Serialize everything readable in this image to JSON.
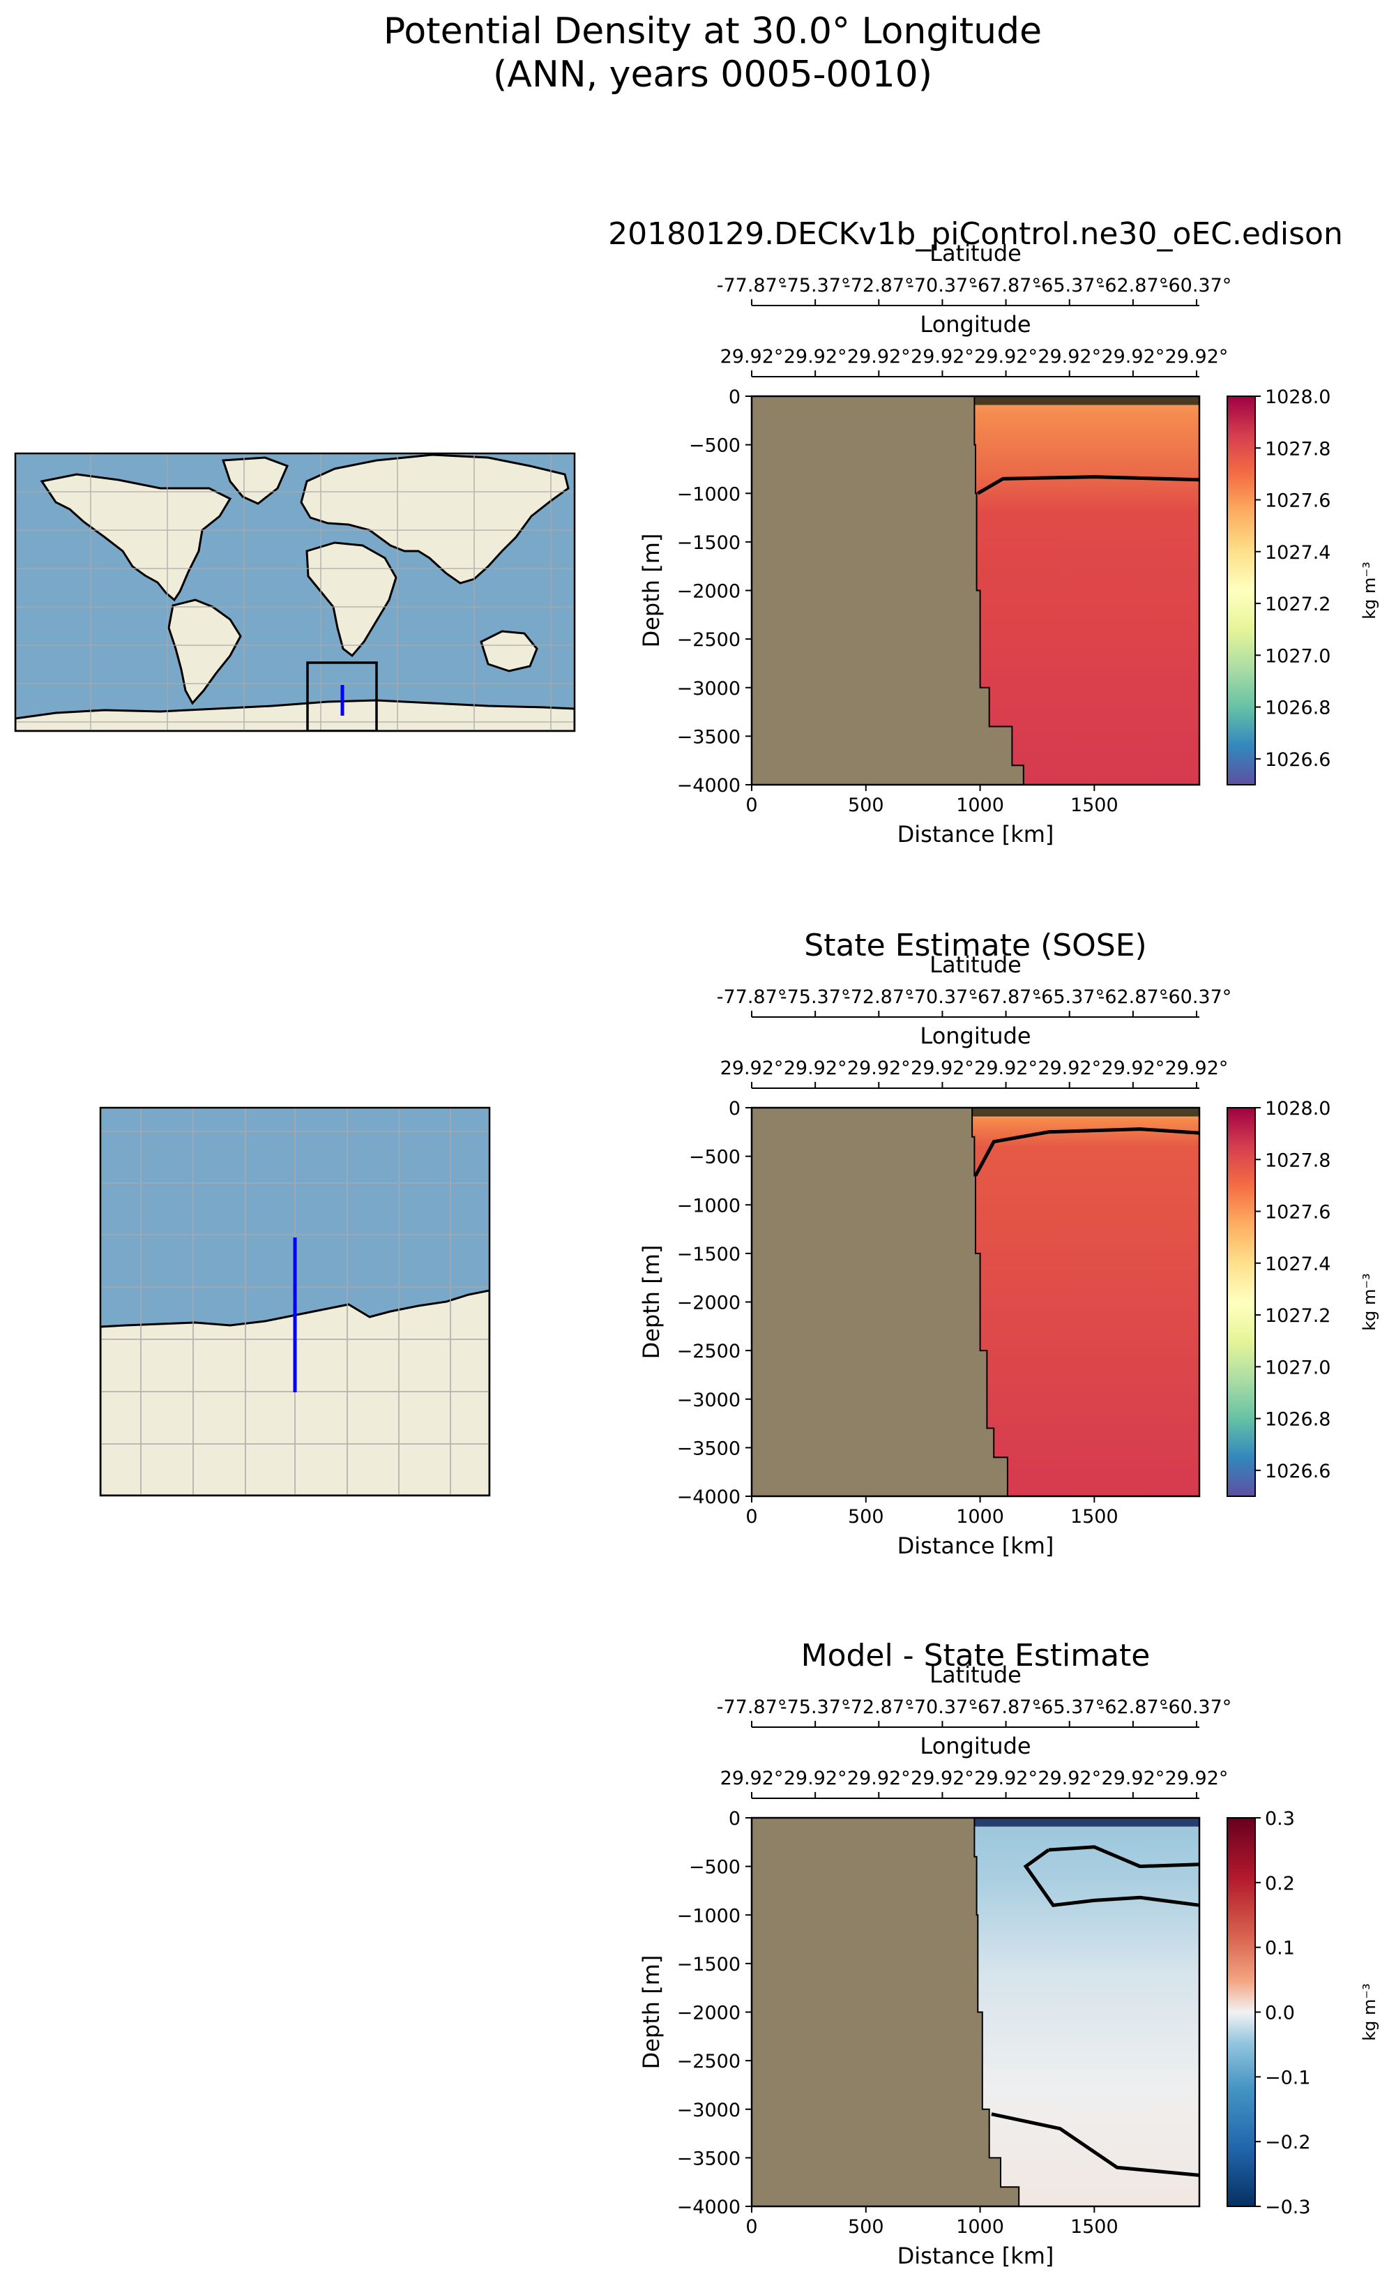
{
  "figure": {
    "title_line1": "Potential Density at 30.0° Longitude",
    "title_line2": "(ANN, years 0005-0010)"
  },
  "colors": {
    "land": "#8f8166",
    "map_ocean": "#7aa8c9",
    "map_land": "#efedd9",
    "transect_line": "#0000ff"
  },
  "maps": [
    {
      "name": "global-map",
      "extent": "global",
      "gridlines": true
    },
    {
      "name": "regional-map",
      "extent": "regional",
      "gridlines": true
    }
  ],
  "chart_data": [
    {
      "type": "heatmap",
      "title": "20180129.DECKv1b_piControl.ne30_oEC.edison",
      "xlabel": "Distance [km]",
      "ylabel": "Depth [m]",
      "xlim": [
        0,
        1960
      ],
      "ylim": [
        -4000,
        0
      ],
      "xticks": [
        "0",
        "500",
        "1000",
        "1500"
      ],
      "yticks": [
        "0",
        "−500",
        "−1000",
        "−1500",
        "−2000",
        "−2500",
        "−3000",
        "−3500",
        "−4000"
      ],
      "secondary_axes": [
        {
          "label": "Latitude",
          "ticks": [
            "-77.87°",
            "-75.37°",
            "-72.87°",
            "-70.37°",
            "-67.87°",
            "-65.37°",
            "-62.87°",
            "-60.37°"
          ]
        },
        {
          "label": "Longitude",
          "ticks": [
            "29.92°",
            "29.92°",
            "29.92°",
            "29.92°",
            "29.92°",
            "29.92°",
            "29.92°",
            "29.92°"
          ]
        }
      ],
      "colorbar": {
        "colormap": "Spectral_r",
        "label": "kg m⁻³",
        "range": [
          1026.5,
          1028.0
        ],
        "ticks": [
          "1028.0",
          "1027.8",
          "1027.6",
          "1027.4",
          "1027.2",
          "1027.0",
          "1026.8",
          "1026.6"
        ]
      },
      "land_boundary_km": [
        [
          0,
          975
        ],
        [
          -100,
          975
        ],
        [
          -200,
          975
        ],
        [
          -500,
          980
        ],
        [
          -1000,
          985
        ],
        [
          -2000,
          1000
        ],
        [
          -3000,
          1040
        ],
        [
          -3400,
          1140
        ],
        [
          -3800,
          1190
        ],
        [
          -4000,
          1230
        ]
      ],
      "surface_density": 1027.5,
      "deep_density": 1027.92,
      "contours_depth_m": [
        [
          [
            990,
            -1000
          ],
          [
            1100,
            -850
          ],
          [
            1500,
            -830
          ],
          [
            1960,
            -860
          ]
        ]
      ]
    },
    {
      "type": "heatmap",
      "title": "State Estimate (SOSE)",
      "xlabel": "Distance [km]",
      "ylabel": "Depth [m]",
      "xlim": [
        0,
        1960
      ],
      "ylim": [
        -4000,
        0
      ],
      "xticks": [
        "0",
        "500",
        "1000",
        "1500"
      ],
      "yticks": [
        "0",
        "−500",
        "−1000",
        "−1500",
        "−2000",
        "−2500",
        "−3000",
        "−3500",
        "−4000"
      ],
      "secondary_axes": [
        {
          "label": "Latitude",
          "ticks": [
            "-77.87°",
            "-75.37°",
            "-72.87°",
            "-70.37°",
            "-67.87°",
            "-65.37°",
            "-62.87°",
            "-60.37°"
          ]
        },
        {
          "label": "Longitude",
          "ticks": [
            "29.92°",
            "29.92°",
            "29.92°",
            "29.92°",
            "29.92°",
            "29.92°",
            "29.92°",
            "29.92°"
          ]
        }
      ],
      "colorbar": {
        "colormap": "Spectral_r",
        "label": "kg m⁻³",
        "range": [
          1026.5,
          1028.0
        ],
        "ticks": [
          "1028.0",
          "1027.8",
          "1027.6",
          "1027.4",
          "1027.2",
          "1027.0",
          "1026.8",
          "1026.6"
        ]
      },
      "land_boundary_km": [
        [
          0,
          965
        ],
        [
          -100,
          965
        ],
        [
          -300,
          975
        ],
        [
          -700,
          980
        ],
        [
          -1500,
          1000
        ],
        [
          -2500,
          1030
        ],
        [
          -3300,
          1060
        ],
        [
          -3600,
          1120
        ],
        [
          -4000,
          1200
        ]
      ],
      "surface_density": 1027.4,
      "deep_density": 1027.92,
      "contours_depth_m": [
        [
          [
            980,
            -700
          ],
          [
            1060,
            -350
          ],
          [
            1300,
            -250
          ],
          [
            1700,
            -220
          ],
          [
            1960,
            -260
          ]
        ]
      ]
    },
    {
      "type": "heatmap",
      "title": "Model - State Estimate",
      "xlabel": "Distance [km]",
      "ylabel": "Depth [m]",
      "xlim": [
        0,
        1960
      ],
      "ylim": [
        -4000,
        0
      ],
      "xticks": [
        "0",
        "500",
        "1000",
        "1500"
      ],
      "yticks": [
        "0",
        "−500",
        "−1000",
        "−1500",
        "−2000",
        "−2500",
        "−3000",
        "−3500",
        "−4000"
      ],
      "secondary_axes": [
        {
          "label": "Latitude",
          "ticks": [
            "-77.87°",
            "-75.37°",
            "-72.87°",
            "-70.37°",
            "-67.87°",
            "-65.37°",
            "-62.87°",
            "-60.37°"
          ]
        },
        {
          "label": "Longitude",
          "ticks": [
            "29.92°",
            "29.92°",
            "29.92°",
            "29.92°",
            "29.92°",
            "29.92°",
            "29.92°",
            "29.92°"
          ]
        }
      ],
      "colorbar": {
        "colormap": "RdBu_r",
        "label": "kg m⁻³",
        "range": [
          -0.3,
          0.3
        ],
        "ticks": [
          "0.3",
          "0.2",
          "0.1",
          "0.0",
          "−0.1",
          "−0.2",
          "−0.3"
        ]
      },
      "land_boundary_km": [
        [
          0,
          975
        ],
        [
          -100,
          975
        ],
        [
          -400,
          985
        ],
        [
          -1000,
          990
        ],
        [
          -2000,
          1010
        ],
        [
          -3000,
          1040
        ],
        [
          -3500,
          1090
        ],
        [
          -3800,
          1170
        ],
        [
          -4000,
          1230
        ]
      ],
      "contours_depth_m": [
        [
          [
            1300,
            -330
          ],
          [
            1500,
            -300
          ],
          [
            1700,
            -500
          ],
          [
            1960,
            -480
          ]
        ],
        [
          [
            1300,
            -330
          ],
          [
            1200,
            -500
          ],
          [
            1320,
            -900
          ],
          [
            1500,
            -850
          ],
          [
            1700,
            -820
          ],
          [
            1960,
            -900
          ]
        ],
        [
          [
            1050,
            -3050
          ],
          [
            1350,
            -3200
          ],
          [
            1600,
            -3600
          ],
          [
            1960,
            -3680
          ]
        ]
      ]
    }
  ]
}
